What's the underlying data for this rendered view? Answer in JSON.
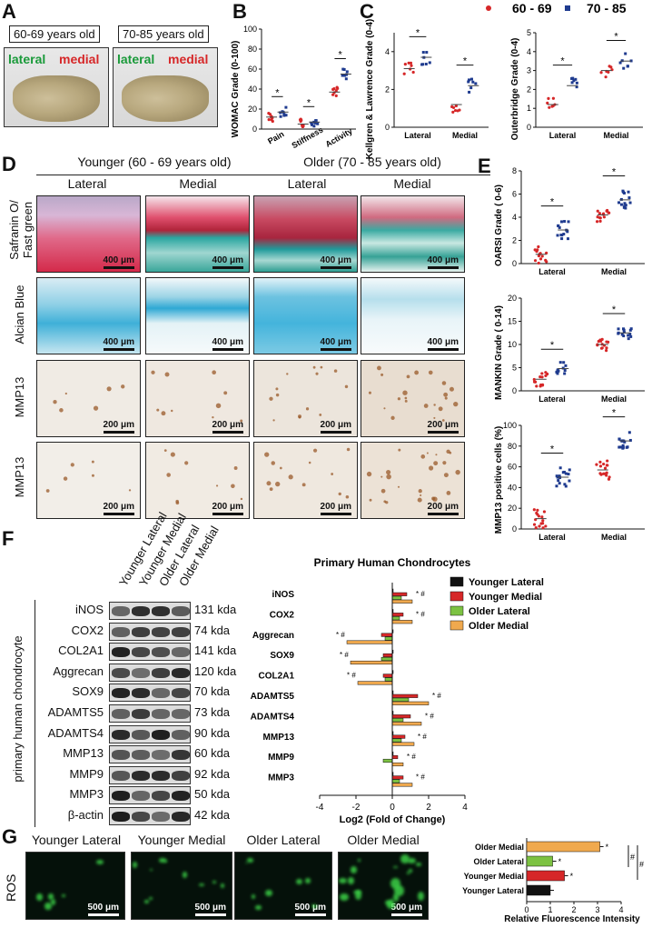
{
  "panels": {
    "a": "A",
    "b": "B",
    "c": "C",
    "d": "D",
    "e": "E",
    "f": "F",
    "g": "G"
  },
  "panel_a": {
    "age_young": "60-69 years old",
    "age_old": "70-85 years old",
    "lateral": "lateral",
    "medial": "medial"
  },
  "legend_top": {
    "young": "60 - 69",
    "old": "70 - 85",
    "young_color": "#d62728",
    "old_color": "#1f3b8f"
  },
  "panel_d": {
    "younger": "Younger (60 - 69 years old)",
    "older": "Older (70 - 85 years old)",
    "lateral": "Lateral",
    "medial": "Medial",
    "rows": [
      "Safranin O/\nFast green",
      "Alcian Blue",
      "MMP13",
      "MMP13"
    ],
    "row1_a": "Safranin O/",
    "row1_b": "Fast green",
    "row2": "Alcian Blue",
    "row3": "MMP13",
    "row4": "MMP13",
    "scale400": "400 μm",
    "scale200": "200 μm"
  },
  "panel_f": {
    "lanes": [
      "Younger Lateral",
      "Younger Medial",
      "Older Lateral",
      "Older Medial"
    ],
    "side_label": "primary human chondrocyte",
    "blots": [
      {
        "name": "iNOS",
        "kda": "131 kda"
      },
      {
        "name": "COX2",
        "kda": "74 kda"
      },
      {
        "name": "COL2A1",
        "kda": "141 kda"
      },
      {
        "name": "Aggrecan",
        "kda": "120 kda"
      },
      {
        "name": "SOX9",
        "kda": "70 kda"
      },
      {
        "name": "ADAMTS5",
        "kda": "73 kda"
      },
      {
        "name": "ADAMTS4",
        "kda": "90 kda"
      },
      {
        "name": "MMP13",
        "kda": "60 kda"
      },
      {
        "name": "MMP9",
        "kda": "92 kda"
      },
      {
        "name": "MMP3",
        "kda": "50 kda"
      },
      {
        "name": "β-actin",
        "kda": "42 kda"
      }
    ]
  },
  "panel_g": {
    "row": "ROS",
    "labels": [
      "Younger Lateral",
      "Younger Medial",
      "Older Lateral",
      "Older Medial"
    ],
    "scale": "500 μm"
  },
  "stat": {
    "star": "*",
    "hash": "#"
  },
  "chart_data": [
    {
      "id": "B",
      "type": "scatter",
      "ylabel": "WOMAC Grade (0-100)",
      "ylim": [
        0,
        100
      ],
      "yticks": [
        0,
        20,
        40,
        60,
        80,
        100
      ],
      "categories": [
        "Pain",
        "Stiffness",
        "Activity"
      ],
      "series": [
        {
          "name": "60 - 69",
          "values": [
            12,
            5,
            37
          ]
        },
        {
          "name": "70 - 85",
          "values": [
            17,
            7,
            55
          ]
        }
      ]
    },
    {
      "id": "C1",
      "type": "scatter",
      "ylabel": "Kellgren & Lawrence Grade (0-4)",
      "ylim": [
        0,
        5
      ],
      "yticks": [
        0,
        2,
        4
      ],
      "categories": [
        "Lateral",
        "Medial"
      ],
      "series": [
        {
          "name": "60 - 69",
          "values": [
            3.1,
            1.2
          ]
        },
        {
          "name": "70 - 85",
          "values": [
            3.7,
            2.2
          ]
        }
      ]
    },
    {
      "id": "C2",
      "type": "scatter",
      "ylabel": "Outerbridge Grade (0-4)",
      "ylim": [
        0,
        5
      ],
      "yticks": [
        0,
        1,
        2,
        3,
        4,
        5
      ],
      "categories": [
        "Lateral",
        "Medial"
      ],
      "series": [
        {
          "name": "60 - 69",
          "values": [
            1.2,
            3.0
          ]
        },
        {
          "name": "70 - 85",
          "values": [
            2.2,
            3.5
          ]
        }
      ]
    },
    {
      "id": "E1",
      "type": "scatter",
      "ylabel": "OARSI Grade ( 0-6)",
      "ylim": [
        0,
        8
      ],
      "yticks": [
        0,
        2,
        4,
        6,
        8
      ],
      "categories": [
        "Lateral",
        "Medial"
      ],
      "series": [
        {
          "name": "60 - 69",
          "values": [
            0.8,
            4.2
          ]
        },
        {
          "name": "70 - 85",
          "values": [
            2.9,
            5.5
          ]
        }
      ]
    },
    {
      "id": "E2",
      "type": "scatter",
      "ylabel": "MANKIN Grade ( 0-14)",
      "ylim": [
        0,
        20
      ],
      "yticks": [
        0,
        5,
        10,
        15,
        20
      ],
      "categories": [
        "Lateral",
        "Medial"
      ],
      "series": [
        {
          "name": "60 - 69",
          "values": [
            2.5,
            10
          ]
        },
        {
          "name": "70 - 85",
          "values": [
            4.8,
            12.5
          ]
        }
      ]
    },
    {
      "id": "E3",
      "type": "scatter",
      "ylabel": "MMP13 positive cells (%)",
      "ylim": [
        0,
        100
      ],
      "yticks": [
        0,
        20,
        40,
        60,
        80,
        100
      ],
      "categories": [
        "Lateral",
        "Medial"
      ],
      "series": [
        {
          "name": "60 - 69",
          "values": [
            10,
            57
          ]
        },
        {
          "name": "70 - 85",
          "values": [
            50,
            85
          ]
        }
      ]
    },
    {
      "id": "F",
      "type": "bar",
      "title": "Primary Human Chondrocytes",
      "xlabel": "Log2 (Fold of Change)",
      "xlim": [
        -4,
        4
      ],
      "xticks": [
        -4,
        -2,
        0,
        2,
        4
      ],
      "categories": [
        "iNOS",
        "COX2",
        "Aggrecan",
        "SOX9",
        "COL2A1",
        "ADAMTS5",
        "ADAMTS4",
        "MMP13",
        "MMP9",
        "MMP3"
      ],
      "series": [
        {
          "name": "Younger Lateral",
          "color": "#111111",
          "values": [
            0,
            0,
            0,
            0,
            0,
            0,
            0,
            0,
            0,
            0
          ]
        },
        {
          "name": "Younger Medial",
          "color": "#d62728",
          "values": [
            0.8,
            0.6,
            -0.6,
            -0.5,
            -0.5,
            1.4,
            1.0,
            0.7,
            0.3,
            0.6
          ]
        },
        {
          "name": "Older Lateral",
          "color": "#7cc242",
          "values": [
            0.5,
            0.4,
            -0.4,
            -0.6,
            -0.4,
            0.9,
            0.6,
            0.5,
            -0.5,
            0.4
          ]
        },
        {
          "name": "Older Medial",
          "color": "#f0a94e",
          "values": [
            1.1,
            1.1,
            -2.5,
            -2.3,
            -1.9,
            2.0,
            1.6,
            1.2,
            0.6,
            1.1
          ]
        }
      ]
    },
    {
      "id": "G",
      "type": "bar",
      "xlabel": "Relative Fluorescence Intensity",
      "xlim": [
        0,
        4
      ],
      "xticks": [
        0,
        1,
        2,
        3,
        4
      ],
      "categories": [
        "Older Medial",
        "Older Lateral",
        "Younger Medial",
        "Younger Lateral"
      ],
      "values": [
        3.1,
        1.1,
        1.6,
        1.0
      ],
      "colors": [
        "#f0a94e",
        "#7cc242",
        "#d62728",
        "#111111"
      ]
    }
  ]
}
